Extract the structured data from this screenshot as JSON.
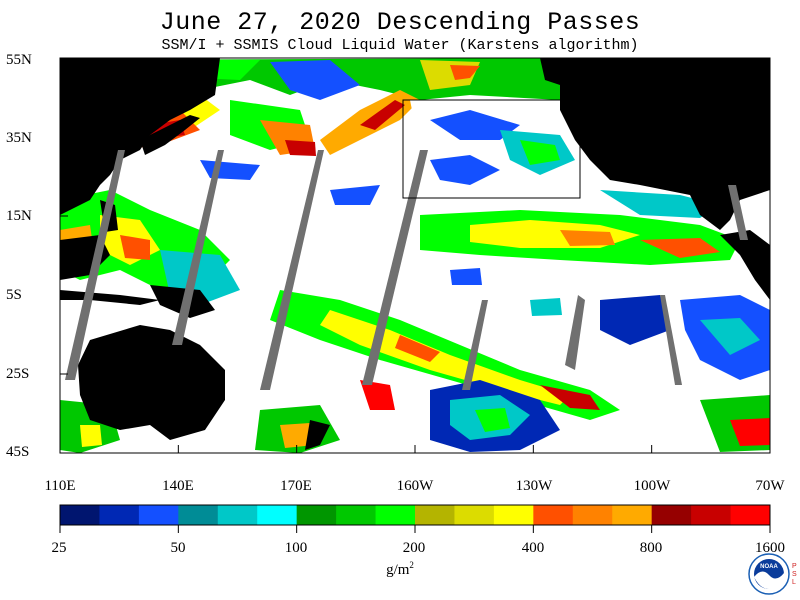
{
  "title": "June 27, 2020  Descending Passes",
  "subtitle": "SSM/I + SSMIS Cloud Liquid Water (Karstens algorithm)",
  "lat_labels": [
    "55N",
    "35N",
    "15N",
    "5S",
    "25S",
    "45S"
  ],
  "lon_labels": [
    "110E",
    "140E",
    "170E",
    "160W",
    "130W",
    "100W",
    "70W"
  ],
  "colorbar": {
    "tick_labels": [
      "25",
      "50",
      "100",
      "200",
      "400",
      "800",
      "1600"
    ],
    "colors": [
      "#00156f",
      "#0028b4",
      "#1450ff",
      "#008c96",
      "#00c8c8",
      "#00ffff",
      "#009600",
      "#00c800",
      "#00ff00",
      "#b4b400",
      "#dcdc00",
      "#ffff00",
      "#ff5000",
      "#ff8200",
      "#ffaa00",
      "#960000",
      "#c80000",
      "#ff0000"
    ]
  },
  "units": "g/m",
  "units_exp": "2",
  "logo": {
    "name": "NOAA",
    "side_text": "PSL"
  },
  "colors": {
    "land": "#000000",
    "missing_swath_gap": "#707070",
    "clear": "#ffffff",
    "region_box": "#000000"
  }
}
